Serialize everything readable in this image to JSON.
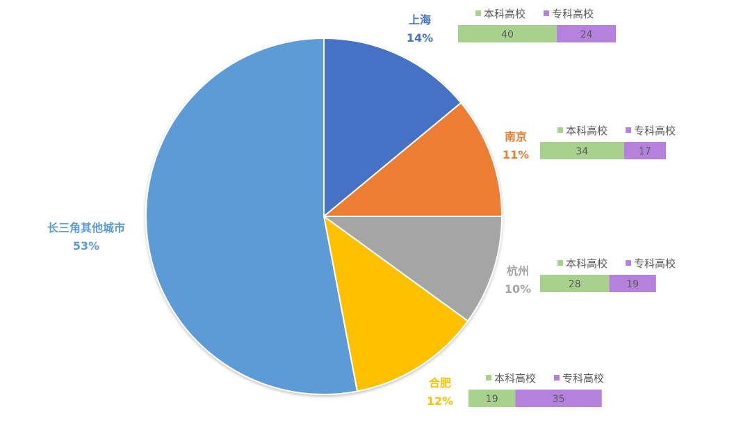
{
  "chart_data": [
    {
      "type": "pie",
      "slices": [
        {
          "label": "上海",
          "percent_label": "14%",
          "value": 14,
          "color": "#4472C4"
        },
        {
          "label": "南京",
          "percent_label": "11%",
          "value": 11,
          "color": "#ED7D31"
        },
        {
          "label": "杭州",
          "percent_label": "10%",
          "value": 10,
          "color": "#A5A5A5"
        },
        {
          "label": "合肥",
          "percent_label": "12%",
          "value": 12,
          "color": "#FFC000"
        },
        {
          "label": "长三角其他城市",
          "percent_label": "53%",
          "value": 53,
          "color": "#5B9BD5"
        }
      ]
    },
    {
      "type": "bar",
      "orientation": "horizontal-stacked",
      "series_names": [
        "本科高校",
        "专科高校"
      ],
      "series_colors": [
        "#A9D18E",
        "#B482DC"
      ],
      "bars": [
        {
          "city": "上海",
          "values": [
            40,
            24
          ]
        },
        {
          "city": "南京",
          "values": [
            34,
            17
          ]
        },
        {
          "city": "杭州",
          "values": [
            28,
            19
          ]
        },
        {
          "city": "合肥",
          "values": [
            19,
            35
          ]
        }
      ]
    }
  ]
}
